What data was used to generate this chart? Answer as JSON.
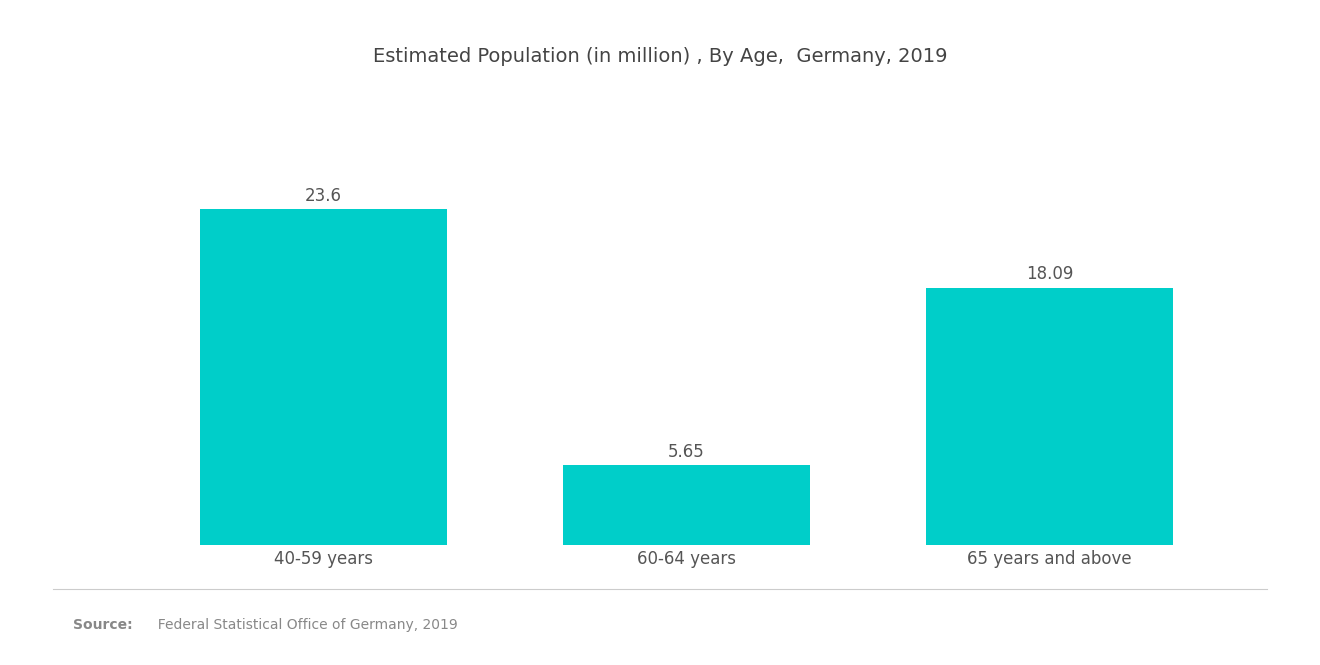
{
  "title": "Estimated Population (in million) , By Age,  Germany, 2019",
  "categories": [
    "40-59 years",
    "60-64 years",
    "65 years and above"
  ],
  "values": [
    23.6,
    5.65,
    18.09
  ],
  "bar_color": "#00CEC9",
  "label_color": "#555555",
  "title_color": "#444444",
  "background_color": "#ffffff",
  "source_bold": "Source:",
  "source_text": "  Federal Statistical Office of Germany, 2019",
  "source_color": "#888888",
  "title_fontsize": 14,
  "label_fontsize": 12,
  "value_fontsize": 12,
  "source_fontsize": 10,
  "ylim": [
    0,
    28
  ],
  "bar_width": 0.68,
  "x_positions": [
    0,
    1,
    2
  ]
}
